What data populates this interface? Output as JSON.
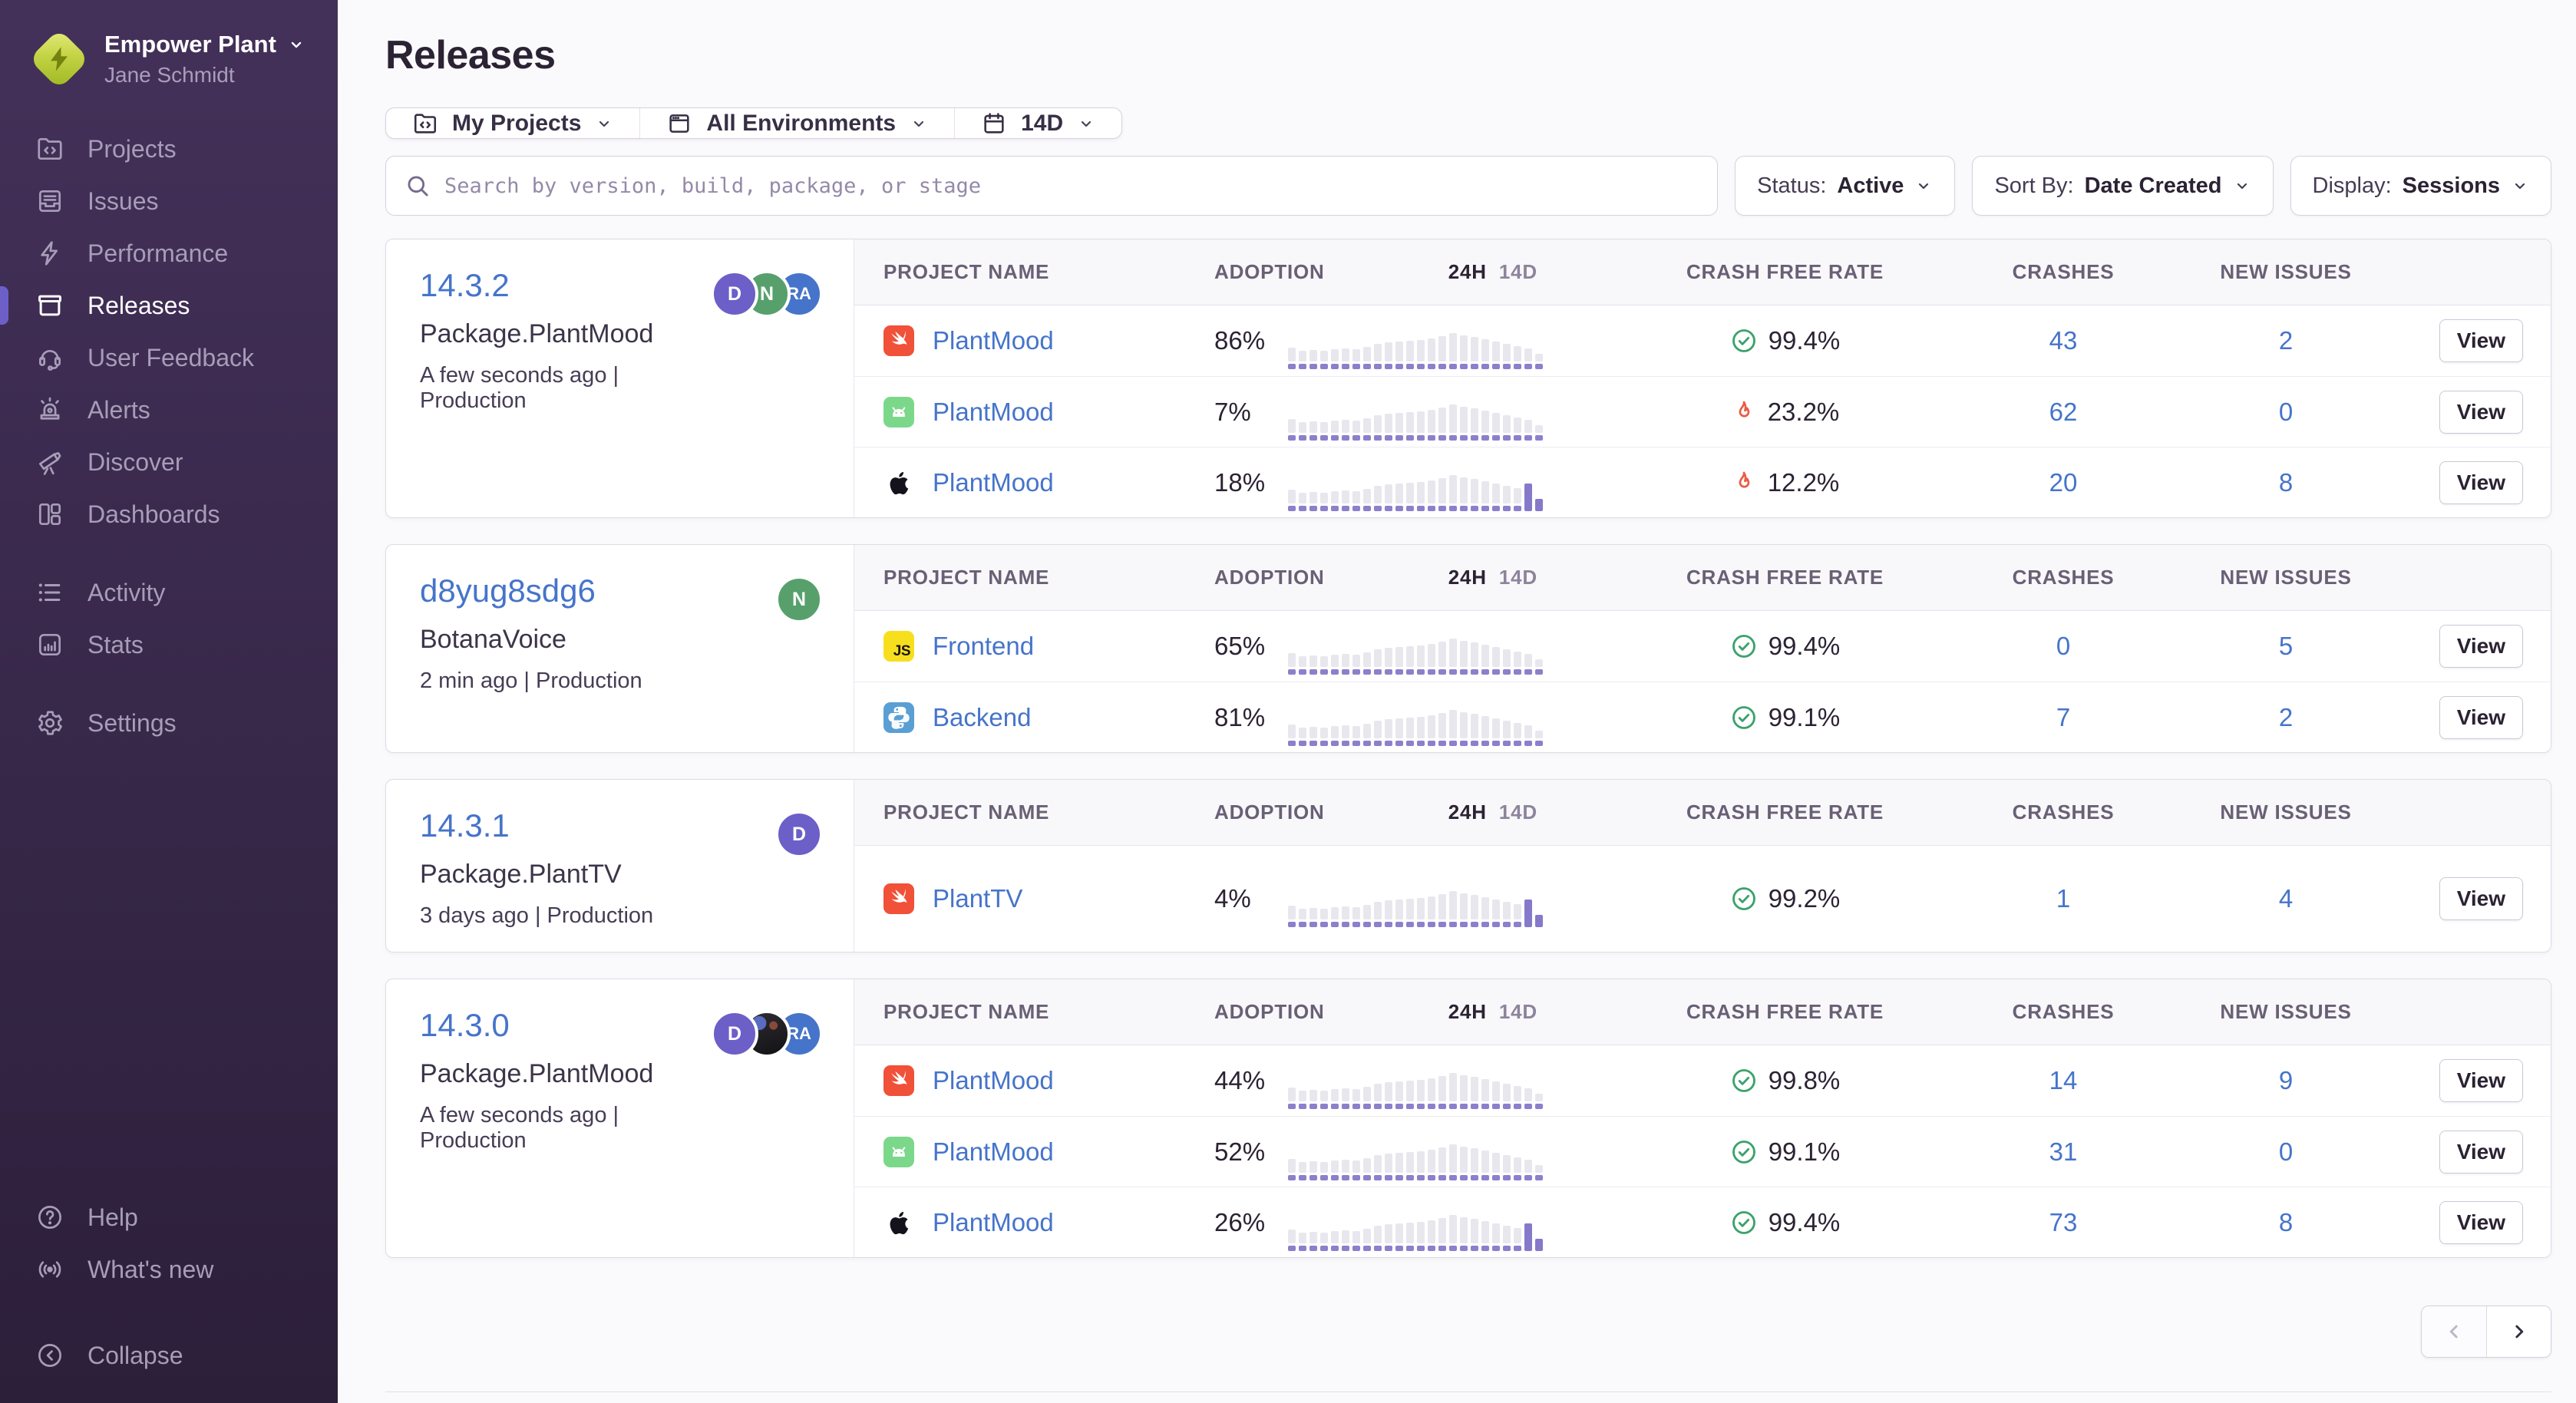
{
  "sidebar": {
    "org": {
      "name": "Empower Plant",
      "user": "Jane Schmidt"
    },
    "primary": [
      {
        "id": "projects",
        "label": "Projects"
      },
      {
        "id": "issues",
        "label": "Issues"
      },
      {
        "id": "performance",
        "label": "Performance"
      },
      {
        "id": "releases",
        "label": "Releases",
        "active": true
      },
      {
        "id": "user-feedback",
        "label": "User Feedback"
      },
      {
        "id": "alerts",
        "label": "Alerts"
      },
      {
        "id": "discover",
        "label": "Discover"
      },
      {
        "id": "dashboards",
        "label": "Dashboards"
      }
    ],
    "secondary": [
      {
        "id": "activity",
        "label": "Activity"
      },
      {
        "id": "stats",
        "label": "Stats"
      }
    ],
    "tertiary": [
      {
        "id": "settings",
        "label": "Settings"
      }
    ],
    "footer": [
      {
        "id": "help",
        "label": "Help"
      },
      {
        "id": "whats-new",
        "label": "What's new"
      }
    ],
    "collapse_label": "Collapse"
  },
  "header": {
    "title": "Releases"
  },
  "filters": {
    "project": "My Projects",
    "environment": "All Environments",
    "period": "14D"
  },
  "search": {
    "placeholder": "Search by version, build, package, or stage"
  },
  "controls": [
    {
      "label": "Status:",
      "value": "Active"
    },
    {
      "label": "Sort By:",
      "value": "Date Created"
    },
    {
      "label": "Display:",
      "value": "Sessions"
    }
  ],
  "table_headers": {
    "project": "PROJECT NAME",
    "adoption": "ADOPTION",
    "toggle_24h": "24H",
    "toggle_14d": "14D",
    "crash_free": "CRASH FREE RATE",
    "crashes": "CRASHES",
    "new_issues": "NEW ISSUES"
  },
  "view_label": "View",
  "colors": {
    "accent_purple": "#6d5fc8",
    "link_blue": "#4674ca",
    "ok_green": "#3ba26b",
    "fire_red": "#ea5b45",
    "spark_gray": "#e9e7ee",
    "spark_purple": "#8b80cc"
  },
  "sparkline": {
    "bar_heights": [
      0.4,
      0.3,
      0.33,
      0.31,
      0.35,
      0.37,
      0.34,
      0.42,
      0.5,
      0.54,
      0.56,
      0.58,
      0.6,
      0.66,
      0.72,
      0.8,
      0.74,
      0.7,
      0.62,
      0.56,
      0.5,
      0.44,
      0.38,
      0.22
    ],
    "tail_heights": [
      0.62,
      0.28
    ]
  },
  "releases": [
    {
      "version": "14.3.2",
      "package": "Package.PlantMood",
      "meta": "A few seconds ago | Production",
      "avatars": [
        {
          "type": "initials",
          "text": "D",
          "color": "#6c5fc7"
        },
        {
          "type": "initials",
          "text": "N",
          "color": "#57a06c"
        },
        {
          "type": "initials",
          "text": "RA",
          "color": "#4674ca"
        }
      ],
      "rows": [
        {
          "platform": "swift",
          "project": "PlantMood",
          "adoption": "86%",
          "tail": 0,
          "status": "ok",
          "crash_free": "99.4%",
          "crashes": "43",
          "new_issues": "2"
        },
        {
          "platform": "android",
          "project": "PlantMood",
          "adoption": "7%",
          "tail": 0,
          "status": "fire",
          "crash_free": "23.2%",
          "crashes": "62",
          "new_issues": "0"
        },
        {
          "platform": "apple",
          "project": "PlantMood",
          "adoption": "18%",
          "tail": 2,
          "status": "fire",
          "crash_free": "12.2%",
          "crashes": "20",
          "new_issues": "8"
        }
      ]
    },
    {
      "version": "d8yug8sdg6",
      "package": "BotanaVoice",
      "meta": "2 min ago | Production",
      "avatars": [
        {
          "type": "initials",
          "text": "N",
          "color": "#57a06c"
        }
      ],
      "rows": [
        {
          "platform": "js",
          "project": "Frontend",
          "adoption": "65%",
          "tail": 0,
          "status": "ok",
          "crash_free": "99.4%",
          "crashes": "0",
          "new_issues": "5"
        },
        {
          "platform": "python",
          "project": "Backend",
          "adoption": "81%",
          "tail": 0,
          "status": "ok",
          "crash_free": "99.1%",
          "crashes": "7",
          "new_issues": "2"
        }
      ]
    },
    {
      "version": "14.3.1",
      "package": "Package.PlantTV",
      "meta": "3 days ago | Production",
      "avatars": [
        {
          "type": "initials",
          "text": "D",
          "color": "#6c5fc7"
        }
      ],
      "rows": [
        {
          "platform": "swift",
          "project": "PlantTV",
          "adoption": "4%",
          "tail": 2,
          "status": "ok",
          "crash_free": "99.2%",
          "crashes": "1",
          "new_issues": "4"
        }
      ]
    },
    {
      "version": "14.3.0",
      "package": "Package.PlantMood",
      "meta": "A few seconds ago | Production",
      "avatars": [
        {
          "type": "initials",
          "text": "D",
          "color": "#6c5fc7"
        },
        {
          "type": "photo",
          "text": ""
        },
        {
          "type": "initials",
          "text": "RA",
          "color": "#4674ca"
        }
      ],
      "rows": [
        {
          "platform": "swift",
          "project": "PlantMood",
          "adoption": "44%",
          "tail": 0,
          "status": "ok",
          "crash_free": "99.8%",
          "crashes": "14",
          "new_issues": "9"
        },
        {
          "platform": "android",
          "project": "PlantMood",
          "adoption": "52%",
          "tail": 0,
          "status": "ok",
          "crash_free": "99.1%",
          "crashes": "31",
          "new_issues": "0"
        },
        {
          "platform": "apple",
          "project": "PlantMood",
          "adoption": "26%",
          "tail": 2,
          "status": "ok",
          "crash_free": "99.4%",
          "crashes": "73",
          "new_issues": "8"
        }
      ]
    }
  ],
  "pagination": {
    "prev_enabled": false,
    "next_enabled": true
  }
}
